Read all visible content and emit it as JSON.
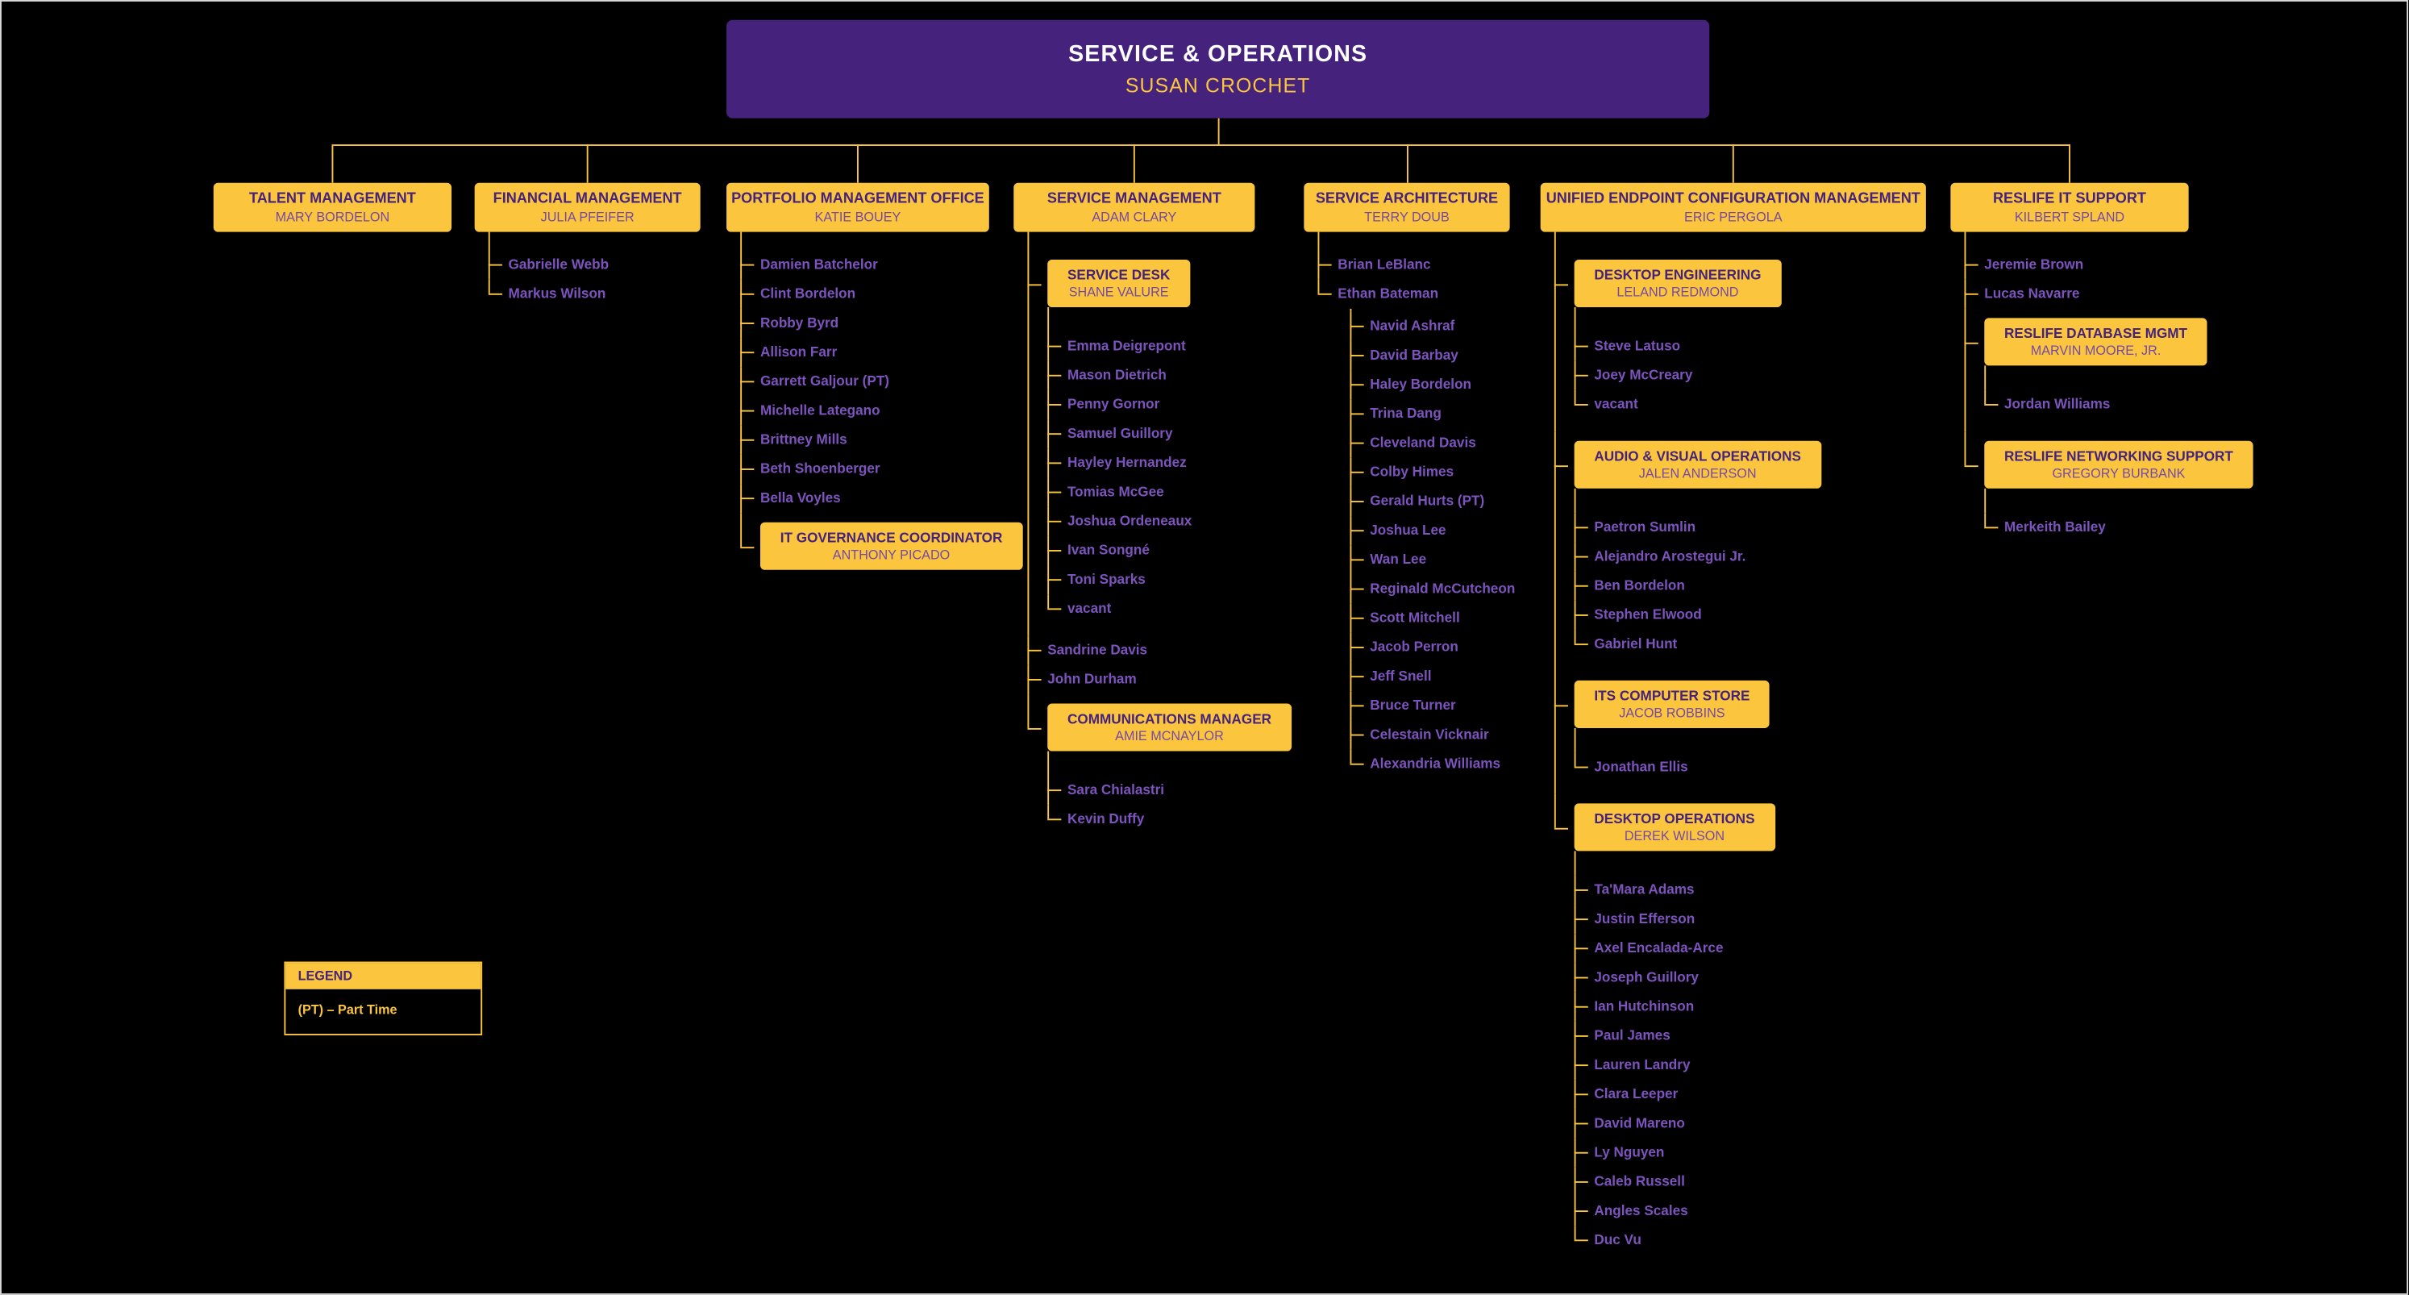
{
  "colors": {
    "background": "#000000",
    "brand_purple": "#45227C",
    "brand_gold": "#FBC63E",
    "name_purple": "#7D53BD",
    "box_name_purple": "#7549A5",
    "root_title_white": "#FFFFFF",
    "frame_border": "#D9D9D9"
  },
  "root": {
    "title": "SERVICE & OPERATIONS",
    "name": "SUSAN CROCHET"
  },
  "legend": {
    "header": "LEGEND",
    "entries": [
      "(PT) – Part Time"
    ]
  },
  "branches": [
    {
      "title": "TALENT MANAGEMENT",
      "name": "MARY BORDELON",
      "children": []
    },
    {
      "title": "FINANCIAL MANAGEMENT",
      "name": "JULIA PFEIFER",
      "children": [
        {
          "type": "person",
          "label": "Gabrielle Webb"
        },
        {
          "type": "person",
          "label": "Markus Wilson"
        }
      ]
    },
    {
      "title": "PORTFOLIO MANAGEMENT OFFICE",
      "name": "KATIE BOUEY",
      "children": [
        {
          "type": "person",
          "label": "Damien Batchelor"
        },
        {
          "type": "person",
          "label": "Clint Bordelon"
        },
        {
          "type": "person",
          "label": "Robby Byrd"
        },
        {
          "type": "person",
          "label": "Allison Farr"
        },
        {
          "type": "person",
          "label": "Garrett Galjour (PT)"
        },
        {
          "type": "person",
          "label": "Michelle Lategano"
        },
        {
          "type": "person",
          "label": "Brittney Mills"
        },
        {
          "type": "person",
          "label": "Beth Shoenberger"
        },
        {
          "type": "person",
          "label": "Bella Voyles"
        },
        {
          "type": "box",
          "title": "IT GOVERNANCE COORDINATOR",
          "name": "ANTHONY PICADO",
          "children": []
        }
      ]
    },
    {
      "title": "SERVICE MANAGEMENT",
      "name": "ADAM CLARY",
      "children": [
        {
          "type": "box",
          "title": "SERVICE DESK",
          "name": "SHANE VALURE",
          "children": [
            {
              "type": "person",
              "label": "Emma Deigrepont"
            },
            {
              "type": "person",
              "label": "Mason Dietrich"
            },
            {
              "type": "person",
              "label": "Penny Gornor"
            },
            {
              "type": "person",
              "label": "Samuel Guillory"
            },
            {
              "type": "person",
              "label": "Hayley Hernandez"
            },
            {
              "type": "person",
              "label": "Tomias McGee"
            },
            {
              "type": "person",
              "label": "Joshua Ordeneaux"
            },
            {
              "type": "person",
              "label": "Ivan Songné"
            },
            {
              "type": "person",
              "label": "Toni Sparks"
            },
            {
              "type": "person",
              "label": "vacant"
            }
          ]
        },
        {
          "type": "person",
          "label": "Sandrine Davis"
        },
        {
          "type": "person",
          "label": "John Durham"
        },
        {
          "type": "box",
          "title": "COMMUNICATIONS MANAGER",
          "name": "AMIE MCNAYLOR",
          "children": [
            {
              "type": "person",
              "label": "Sara Chialastri"
            },
            {
              "type": "person",
              "label": "Kevin Duffy"
            }
          ]
        }
      ]
    },
    {
      "title": "SERVICE ARCHITECTURE",
      "name": "TERRY DOUB",
      "children": [
        {
          "type": "person",
          "label": "Brian LeBlanc"
        },
        {
          "type": "person",
          "label": "Ethan Bateman",
          "children": [
            {
              "type": "person",
              "label": "Navid Ashraf"
            },
            {
              "type": "person",
              "label": "David Barbay"
            },
            {
              "type": "person",
              "label": "Haley Bordelon"
            },
            {
              "type": "person",
              "label": "Trina Dang"
            },
            {
              "type": "person",
              "label": "Cleveland Davis"
            },
            {
              "type": "person",
              "label": "Colby Himes"
            },
            {
              "type": "person",
              "label": "Gerald Hurts (PT)"
            },
            {
              "type": "person",
              "label": "Joshua Lee"
            },
            {
              "type": "person",
              "label": "Wan Lee"
            },
            {
              "type": "person",
              "label": "Reginald McCutcheon"
            },
            {
              "type": "person",
              "label": "Scott Mitchell"
            },
            {
              "type": "person",
              "label": "Jacob Perron"
            },
            {
              "type": "person",
              "label": "Jeff Snell"
            },
            {
              "type": "person",
              "label": "Bruce Turner"
            },
            {
              "type": "person",
              "label": "Celestain Vicknair"
            },
            {
              "type": "person",
              "label": "Alexandria Williams"
            }
          ]
        }
      ]
    },
    {
      "title": "UNIFIED ENDPOINT CONFIGURATION MANAGEMENT",
      "name": "ERIC PERGOLA",
      "children": [
        {
          "type": "box",
          "title": "DESKTOP ENGINEERING",
          "name": "LELAND REDMOND",
          "children": [
            {
              "type": "person",
              "label": "Steve Latuso"
            },
            {
              "type": "person",
              "label": "Joey McCreary"
            },
            {
              "type": "person",
              "label": "vacant"
            }
          ]
        },
        {
          "type": "box",
          "title": "AUDIO & VISUAL OPERATIONS",
          "name": "JALEN ANDERSON",
          "children": [
            {
              "type": "person",
              "label": "Paetron Sumlin"
            },
            {
              "type": "person",
              "label": "Alejandro Arostegui Jr."
            },
            {
              "type": "person",
              "label": "Ben Bordelon"
            },
            {
              "type": "person",
              "label": "Stephen Elwood"
            },
            {
              "type": "person",
              "label": "Gabriel Hunt"
            }
          ]
        },
        {
          "type": "box",
          "title": "ITS COMPUTER STORE",
          "name": "JACOB ROBBINS",
          "children": [
            {
              "type": "person",
              "label": "Jonathan Ellis"
            }
          ]
        },
        {
          "type": "box",
          "title": "DESKTOP OPERATIONS",
          "name": "DEREK WILSON",
          "children": [
            {
              "type": "person",
              "label": "Ta'Mara Adams"
            },
            {
              "type": "person",
              "label": "Justin Efferson"
            },
            {
              "type": "person",
              "label": "Axel Encalada-Arce"
            },
            {
              "type": "person",
              "label": "Joseph Guillory"
            },
            {
              "type": "person",
              "label": "Ian Hutchinson"
            },
            {
              "type": "person",
              "label": "Paul James"
            },
            {
              "type": "person",
              "label": "Lauren Landry"
            },
            {
              "type": "person",
              "label": "Clara Leeper"
            },
            {
              "type": "person",
              "label": "David Mareno"
            },
            {
              "type": "person",
              "label": "Ly Nguyen"
            },
            {
              "type": "person",
              "label": "Caleb Russell"
            },
            {
              "type": "person",
              "label": "Angles Scales"
            },
            {
              "type": "person",
              "label": "Duc Vu"
            }
          ]
        }
      ]
    },
    {
      "title": "RESLIFE IT SUPPORT",
      "name": "KILBERT SPLAND",
      "children": [
        {
          "type": "person",
          "label": "Jeremie Brown"
        },
        {
          "type": "person",
          "label": "Lucas Navarre"
        },
        {
          "type": "box",
          "title": "RESLIFE DATABASE MGMT",
          "name": "MARVIN MOORE, JR.",
          "children": [
            {
              "type": "person",
              "label": "Jordan Williams"
            }
          ]
        },
        {
          "type": "box",
          "title": "RESLIFE NETWORKING SUPPORT",
          "name": "GREGORY BURBANK",
          "children": [
            {
              "type": "person",
              "label": "Merkeith Bailey"
            }
          ]
        }
      ]
    }
  ]
}
